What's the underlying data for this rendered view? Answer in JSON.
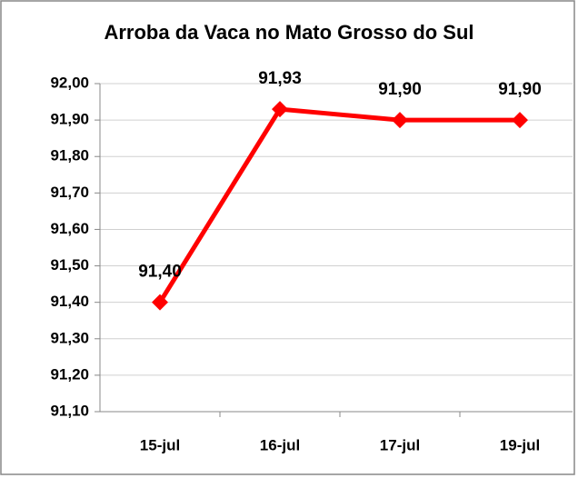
{
  "chart_data": {
    "type": "line",
    "title": "Arroba da Vaca no Mato Grosso do Sul",
    "categories": [
      "15-jul",
      "16-jul",
      "17-jul",
      "19-jul"
    ],
    "series": [
      {
        "color": "#ff0000",
        "values": [
          91.4,
          91.93,
          91.9,
          91.9
        ],
        "value_labels": [
          "91,40",
          "91,93",
          "91,90",
          "91,90"
        ]
      }
    ],
    "ylim": [
      91.1,
      92.0
    ],
    "yticks": [
      {
        "value": 91.1,
        "label": "91,10"
      },
      {
        "value": 91.2,
        "label": "91,20"
      },
      {
        "value": 91.3,
        "label": "91,30"
      },
      {
        "value": 91.4,
        "label": "91,40"
      },
      {
        "value": 91.5,
        "label": "91,50"
      },
      {
        "value": 91.6,
        "label": "91,60"
      },
      {
        "value": 91.7,
        "label": "91,70"
      },
      {
        "value": 91.8,
        "label": "91,80"
      },
      {
        "value": 91.9,
        "label": "91,90"
      },
      {
        "value": 92.0,
        "label": "92,00"
      }
    ],
    "grid": true
  }
}
